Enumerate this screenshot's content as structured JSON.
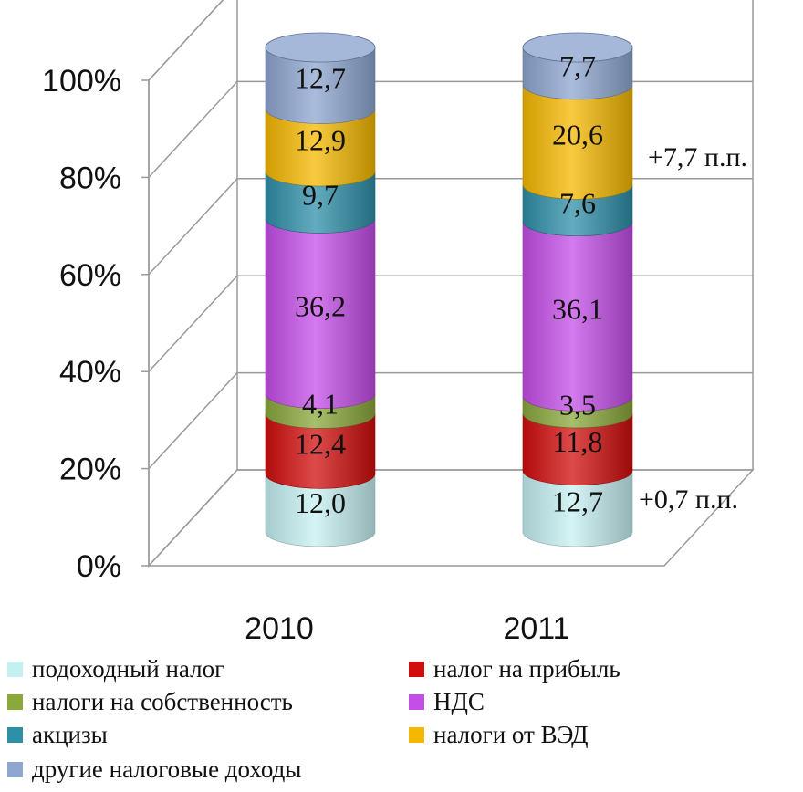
{
  "chart_data": {
    "type": "bar",
    "stacked": true,
    "three_d": true,
    "bar_shape": "cylinder",
    "categories": [
      "2010",
      "2011"
    ],
    "ylim": [
      0,
      100
    ],
    "y_ticks": [
      "0%",
      "20%",
      "40%",
      "60%",
      "80%",
      "100%"
    ],
    "grid": true,
    "legend_position": "bottom",
    "series": [
      {
        "name": "подоходный налог",
        "color": "#c5f0f2",
        "values": [
          12.0,
          12.7
        ],
        "labels": [
          "12,0",
          "12,7"
        ]
      },
      {
        "name": "налог на прибыль",
        "color": "#d10d0d",
        "values": [
          12.4,
          11.8
        ],
        "labels": [
          "12,4",
          "11,8"
        ]
      },
      {
        "name": "налоги на собственность",
        "color": "#8aa83c",
        "values": [
          4.1,
          3.5
        ],
        "labels": [
          "4,1",
          "3,5"
        ]
      },
      {
        "name": "НДС",
        "color": "#c44ee8",
        "values": [
          36.2,
          36.1
        ],
        "labels": [
          "36,2",
          "36,1"
        ]
      },
      {
        "name": "акцизы",
        "color": "#2f8fa8",
        "values": [
          9.7,
          7.6
        ],
        "labels": [
          "9,7",
          "7,6"
        ]
      },
      {
        "name": "налоги от ВЭД",
        "color": "#f5b800",
        "values": [
          12.9,
          20.6
        ],
        "labels": [
          "12,9",
          "20,6"
        ]
      },
      {
        "name": "другие налоговые доходы",
        "color": "#8ea6d0",
        "values": [
          12.7,
          7.7
        ],
        "labels": [
          "12,7",
          "7,7"
        ]
      }
    ],
    "annotations": [
      {
        "text": "+7,7 п.п.",
        "category": "2011",
        "series": "налоги от ВЭД"
      },
      {
        "text": "+0,7 п.п.",
        "category": "2011",
        "series": "подоходный налог"
      }
    ]
  }
}
